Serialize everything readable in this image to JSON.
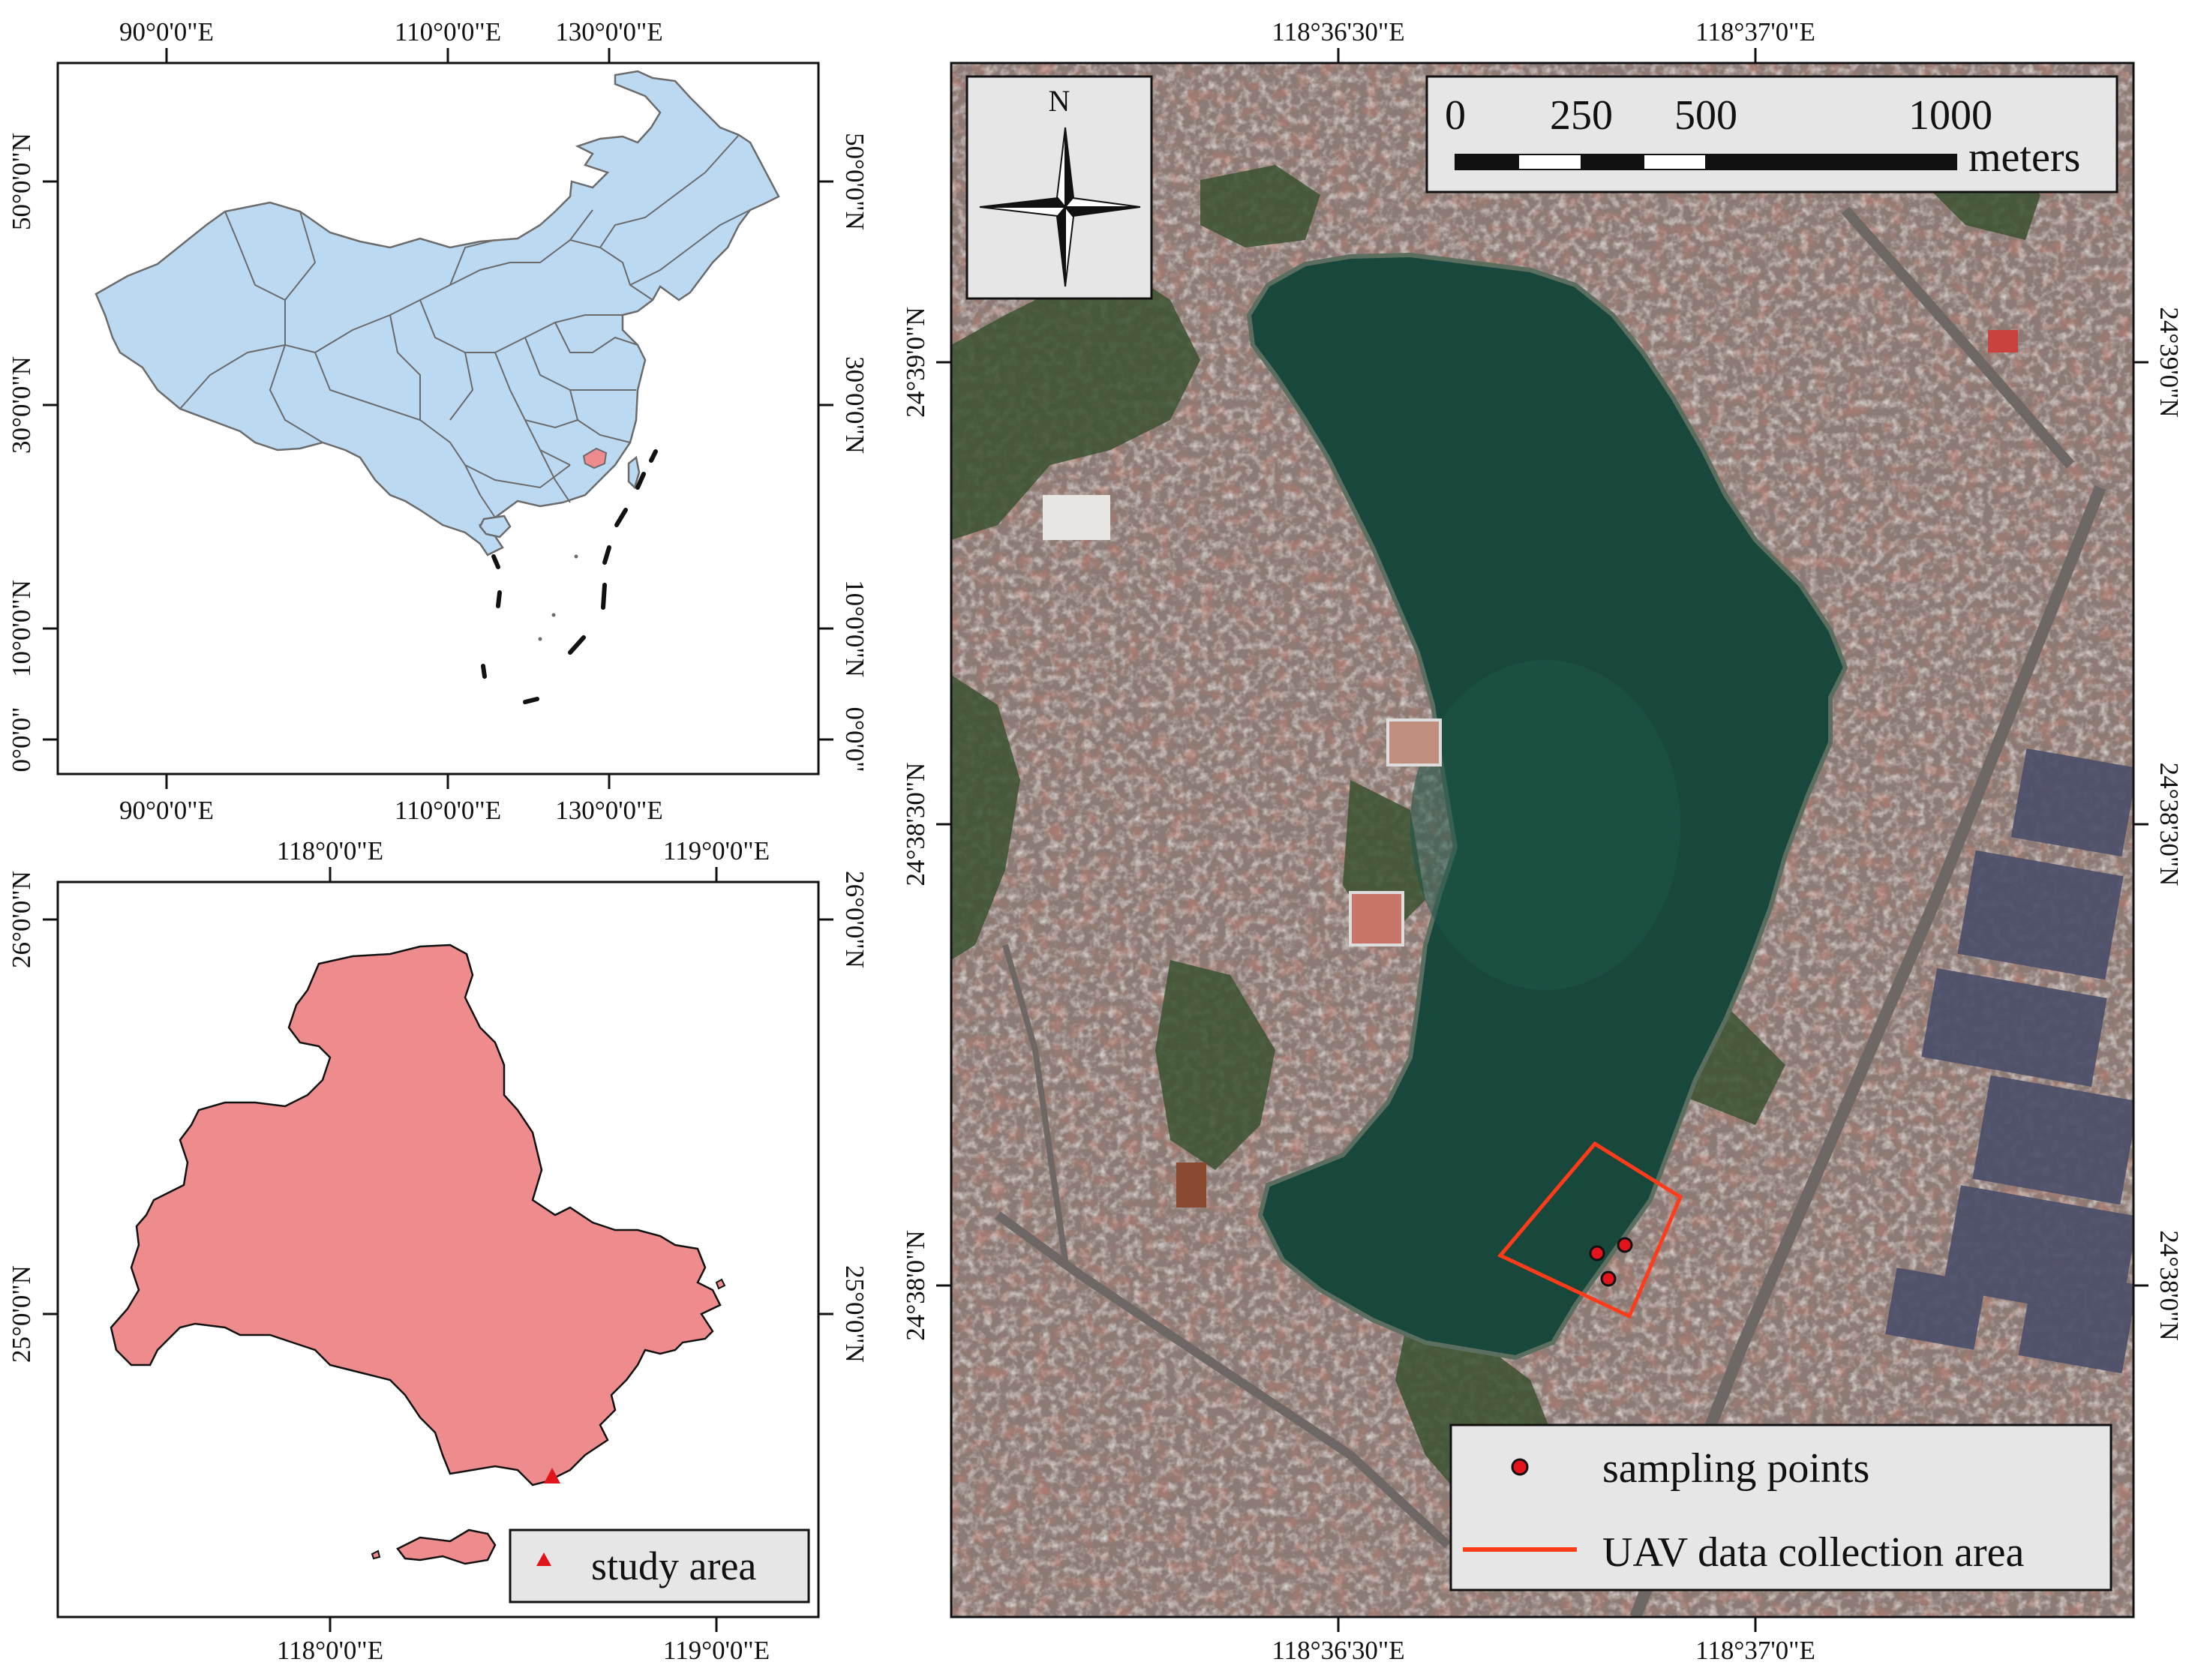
{
  "panel_a": {
    "lon_labels": [
      "90°0'0\"E",
      "110°0'0\"E",
      "130°0'0\"E"
    ],
    "lat_labels": [
      "0°0'0\"",
      "10°0'0\"N",
      "30°0'0\"N",
      "50°0'0\"N"
    ],
    "colors": {
      "land": "#bcd9f2",
      "outline": "#6b6b6b",
      "highlight": "#ee8b8d"
    }
  },
  "panel_b": {
    "lon_labels": [
      "118°0'0\"E",
      "119°0'0\"E"
    ],
    "lat_labels": [
      "25°0'0\"N",
      "26°0'0\"N"
    ],
    "legend": {
      "label": "study area",
      "symbol": "red-triangle"
    },
    "colors": {
      "region": "#ee8b8d",
      "marker": "#e0141a",
      "legend_bg": "#e6e6e6"
    }
  },
  "panel_c": {
    "lon_labels": [
      "118°36'30\"E",
      "118°37'0\"E"
    ],
    "lat_labels": [
      "24°38'0\"N",
      "24°38'30\"N",
      "24°39'0\"N"
    ],
    "compass": {
      "letter": "N"
    },
    "scale_bar": {
      "ticks": [
        "0",
        "250",
        "500",
        "1000"
      ],
      "unit": "meters"
    },
    "legend": [
      {
        "label": "sampling points",
        "symbol": "red-dot"
      },
      {
        "label": "UAV data collection area",
        "symbol": "red-line"
      }
    ],
    "colors": {
      "water": "#18473c",
      "urban": "#8c7a74",
      "vegetation": "#3b5230",
      "uav_outline": "#ff3b1a",
      "point": "#e3131b",
      "box_bg": "#e6e6e6"
    }
  }
}
